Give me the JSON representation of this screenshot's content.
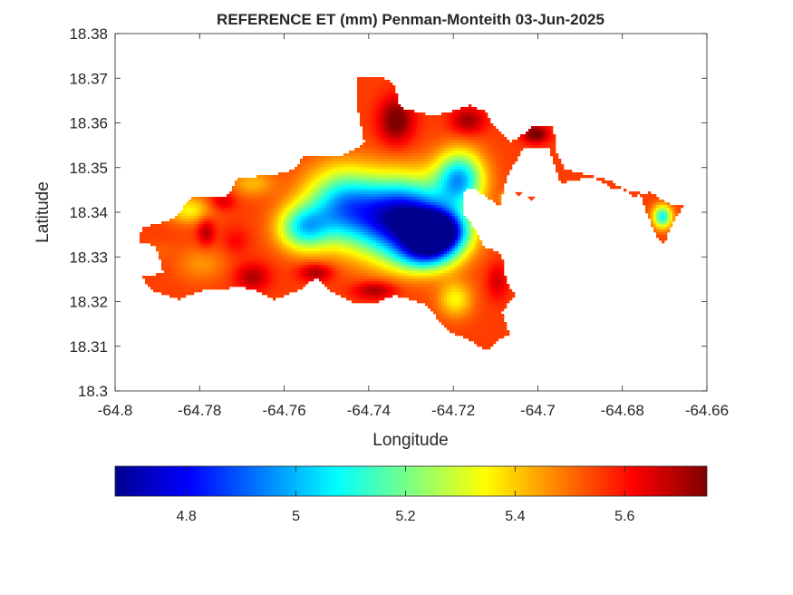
{
  "chart_data": {
    "type": "heatmap",
    "title": "REFERENCE ET (mm) Penman-Monteith 03-Jun-2025",
    "xlabel": "Longitude",
    "ylabel": "Latitude",
    "xlim": [
      -64.8,
      -64.66
    ],
    "ylim": [
      18.3,
      18.38
    ],
    "xticks": [
      -64.8,
      -64.78,
      -64.76,
      -64.74,
      -64.72,
      -64.7,
      -64.68,
      -64.66
    ],
    "xtick_labels": [
      "-64.8",
      "-64.78",
      "-64.76",
      "-64.74",
      "-64.72",
      "-64.7",
      "-64.68",
      "-64.66"
    ],
    "yticks": [
      18.3,
      18.31,
      18.32,
      18.33,
      18.34,
      18.35,
      18.36,
      18.37,
      18.38
    ],
    "ytick_labels": [
      "18.3",
      "18.31",
      "18.32",
      "18.33",
      "18.34",
      "18.35",
      "18.36",
      "18.37",
      "18.38"
    ],
    "grid": false,
    "colormap": "jet",
    "colorbar": {
      "orientation": "horizontal",
      "position": "bottom",
      "clim": [
        4.67,
        5.75
      ],
      "ticks": [
        4.8,
        5.0,
        5.2,
        5.4,
        5.6
      ],
      "tick_labels": [
        "4.8",
        "5",
        "5.2",
        "5.4",
        "5.6"
      ],
      "stops": [
        "#00008f",
        "#0000ff",
        "#00ffff",
        "#ffff00",
        "#ff0000",
        "#800000"
      ]
    },
    "field": {
      "mask": [
        [
          -64.7935,
          18.3365
        ],
        [
          -64.786,
          18.3385
        ],
        [
          -64.782,
          18.3435
        ],
        [
          -64.7735,
          18.3435
        ],
        [
          -64.771,
          18.3475
        ],
        [
          -64.762,
          18.3485
        ],
        [
          -64.7575,
          18.3495
        ],
        [
          -64.7555,
          18.3525
        ],
        [
          -64.7465,
          18.3525
        ],
        [
          -64.741,
          18.3555
        ],
        [
          -64.7425,
          18.3625
        ],
        [
          -64.743,
          18.3705
        ],
        [
          -64.737,
          18.3705
        ],
        [
          -64.734,
          18.3685
        ],
        [
          -64.7325,
          18.3635
        ],
        [
          -64.725,
          18.3615
        ],
        [
          -64.7205,
          18.3625
        ],
        [
          -64.716,
          18.364
        ],
        [
          -64.7125,
          18.3625
        ],
        [
          -64.7105,
          18.3595
        ],
        [
          -64.7065,
          18.3555
        ],
        [
          -64.7005,
          18.3595
        ],
        [
          -64.6965,
          18.3595
        ],
        [
          -64.6955,
          18.3535
        ],
        [
          -64.6935,
          18.3495
        ],
        [
          -64.6885,
          18.3485
        ],
        [
          -64.6825,
          18.347
        ],
        [
          -64.6775,
          18.3435
        ],
        [
          -64.6735,
          18.3445
        ],
        [
          -64.6695,
          18.342
        ],
        [
          -64.6655,
          18.3415
        ],
        [
          -64.6675,
          18.3385
        ],
        [
          -64.6695,
          18.335
        ],
        [
          -64.67,
          18.3325
        ],
        [
          -64.672,
          18.3345
        ],
        [
          -64.6735,
          18.338
        ],
        [
          -64.676,
          18.3445
        ],
        [
          -64.6825,
          18.3455
        ],
        [
          -64.6865,
          18.3475
        ],
        [
          -64.6895,
          18.3475
        ],
        [
          -64.6945,
          18.3465
        ],
        [
          -64.6975,
          18.3545
        ],
        [
          -64.7035,
          18.3545
        ],
        [
          -64.7075,
          18.3475
        ],
        [
          -64.709,
          18.3415
        ],
        [
          -64.7155,
          18.3455
        ],
        [
          -64.718,
          18.3445
        ],
        [
          -64.7175,
          18.3395
        ],
        [
          -64.715,
          18.3365
        ],
        [
          -64.713,
          18.3325
        ],
        [
          -64.7085,
          18.3305
        ],
        [
          -64.7075,
          18.3245
        ],
        [
          -64.7055,
          18.3215
        ],
        [
          -64.7085,
          18.3175
        ],
        [
          -64.7065,
          18.3125
        ],
        [
          -64.7095,
          18.3115
        ],
        [
          -64.712,
          18.309
        ],
        [
          -64.7165,
          18.3115
        ],
        [
          -64.7215,
          18.3135
        ],
        [
          -64.724,
          18.3165
        ],
        [
          -64.7265,
          18.3195
        ],
        [
          -64.734,
          18.3215
        ],
        [
          -64.7385,
          18.3195
        ],
        [
          -64.743,
          18.3195
        ],
        [
          -64.7495,
          18.3225
        ],
        [
          -64.7525,
          18.3255
        ],
        [
          -64.7565,
          18.3225
        ],
        [
          -64.7625,
          18.3205
        ],
        [
          -64.7665,
          18.3225
        ],
        [
          -64.7715,
          18.3235
        ],
        [
          -64.775,
          18.3225
        ],
        [
          -64.7795,
          18.3225
        ],
        [
          -64.785,
          18.3205
        ],
        [
          -64.7915,
          18.3225
        ],
        [
          -64.7935,
          18.3255
        ],
        [
          -64.7885,
          18.3265
        ],
        [
          -64.7905,
          18.3325
        ],
        [
          -64.7945,
          18.3335
        ]
      ],
      "islands": [
        [
          [
            -64.7025,
            18.3435
          ],
          [
            -64.7015,
            18.3425
          ],
          [
            -64.7005,
            18.3435
          ]
        ],
        [
          [
            -64.7055,
            18.3445
          ],
          [
            -64.7045,
            18.3435
          ],
          [
            -64.7035,
            18.3445
          ]
        ]
      ],
      "base_value": 5.55,
      "features": [
        {
          "lon": -64.732,
          "lat": 18.3385,
          "value": 4.68,
          "sx": 0.011,
          "sy": 0.0085
        },
        {
          "lon": -64.7235,
          "lat": 18.3355,
          "value": 4.68,
          "sx": 0.0065,
          "sy": 0.0045
        },
        {
          "lon": -64.7465,
          "lat": 18.3415,
          "value": 5.06,
          "sx": 0.0085,
          "sy": 0.008
        },
        {
          "lon": -64.7555,
          "lat": 18.3365,
          "value": 5.12,
          "sx": 0.006,
          "sy": 0.005
        },
        {
          "lon": -64.7185,
          "lat": 18.3475,
          "value": 5.02,
          "sx": 0.0055,
          "sy": 0.006
        },
        {
          "lon": -64.7265,
          "lat": 18.3305,
          "value": 5.18,
          "sx": 0.007,
          "sy": 0.004
        },
        {
          "lon": -64.7195,
          "lat": 18.3205,
          "value": 5.35,
          "sx": 0.004,
          "sy": 0.004
        },
        {
          "lon": -64.7795,
          "lat": 18.3285,
          "value": 5.46,
          "sx": 0.006,
          "sy": 0.004
        },
        {
          "lon": -64.7825,
          "lat": 18.3405,
          "value": 5.35,
          "sx": 0.005,
          "sy": 0.003
        },
        {
          "lon": -64.7675,
          "lat": 18.3465,
          "value": 5.42,
          "sx": 0.005,
          "sy": 0.003
        },
        {
          "lon": -64.6705,
          "lat": 18.339,
          "value": 5.08,
          "sx": 0.0022,
          "sy": 0.0025
        },
        {
          "lon": -64.7075,
          "lat": 18.343,
          "value": 5.32,
          "sx": 0.0012,
          "sy": 0.0015
        },
        {
          "lon": -64.7335,
          "lat": 18.3605,
          "value": 5.78,
          "sx": 0.004,
          "sy": 0.005
        },
        {
          "lon": -64.7165,
          "lat": 18.3605,
          "value": 5.72,
          "sx": 0.004,
          "sy": 0.003
        },
        {
          "lon": -64.7385,
          "lat": 18.3225,
          "value": 5.72,
          "sx": 0.005,
          "sy": 0.002
        },
        {
          "lon": -64.7525,
          "lat": 18.3265,
          "value": 5.72,
          "sx": 0.004,
          "sy": 0.002
        },
        {
          "lon": -64.7675,
          "lat": 18.3255,
          "value": 5.7,
          "sx": 0.004,
          "sy": 0.003
        },
        {
          "lon": -64.7785,
          "lat": 18.3355,
          "value": 5.7,
          "sx": 0.002,
          "sy": 0.003
        },
        {
          "lon": -64.7745,
          "lat": 18.3425,
          "value": 5.66,
          "sx": 0.003,
          "sy": 0.002
        },
        {
          "lon": -64.7715,
          "lat": 18.3335,
          "value": 5.62,
          "sx": 0.003,
          "sy": 0.003
        },
        {
          "lon": -64.7005,
          "lat": 18.3575,
          "value": 5.78,
          "sx": 0.003,
          "sy": 0.002
        },
        {
          "lon": -64.7095,
          "lat": 18.3245,
          "value": 5.66,
          "sx": 0.0025,
          "sy": 0.004
        },
        {
          "lon": -64.7895,
          "lat": 18.3315,
          "value": 5.52,
          "sx": 0.003,
          "sy": 0.002
        }
      ]
    }
  }
}
